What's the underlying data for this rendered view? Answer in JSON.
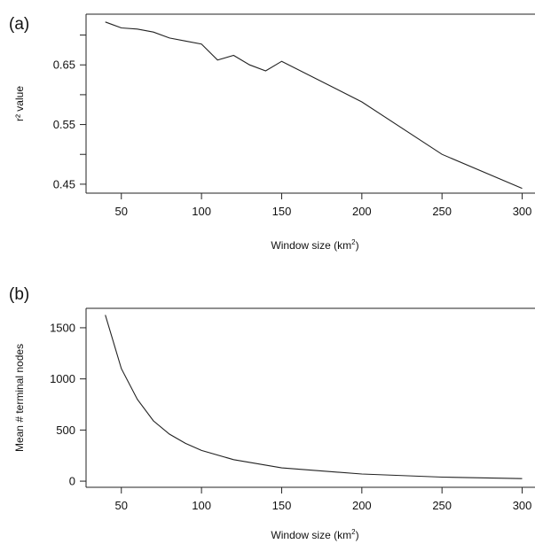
{
  "chart_data": [
    {
      "type": "line",
      "panel_label": "(a)",
      "xlabel": "Window size (km",
      "xlabel_sup": "2",
      "xlabel_end": ")",
      "ylabel": "r² value",
      "xticks": [
        50,
        100,
        150,
        200,
        250,
        300
      ],
      "xtick_labels": [
        "50",
        "100",
        "150",
        "200",
        "250",
        "300"
      ],
      "yticks": [
        0.45,
        0.5,
        0.55,
        0.6,
        0.65,
        0.7
      ],
      "ytick_labels": [
        "0.45",
        "",
        "0.55",
        "",
        "0.65",
        ""
      ],
      "xlim": [
        28,
        308
      ],
      "ylim": [
        0.435,
        0.735
      ],
      "series": [
        {
          "x": [
            40,
            50,
            60,
            70,
            80,
            90,
            100,
            110,
            120,
            130,
            140,
            150,
            200,
            250,
            300
          ],
          "y": [
            0.722,
            0.712,
            0.71,
            0.705,
            0.695,
            0.69,
            0.685,
            0.658,
            0.666,
            0.65,
            0.64,
            0.656,
            0.588,
            0.5,
            0.443
          ]
        }
      ],
      "grid": false
    },
    {
      "type": "line",
      "panel_label": "(b)",
      "xlabel": "Window size (km",
      "xlabel_sup": "2",
      "xlabel_end": ")",
      "ylabel": "Mean # terminal nodes",
      "xticks": [
        50,
        100,
        150,
        200,
        250,
        300
      ],
      "xtick_labels": [
        "50",
        "100",
        "150",
        "200",
        "250",
        "300"
      ],
      "yticks": [
        0,
        500,
        1000,
        1500
      ],
      "ytick_labels": [
        "0",
        "500",
        "1000",
        "1500"
      ],
      "xlim": [
        28,
        308
      ],
      "ylim": [
        -60,
        1690
      ],
      "series": [
        {
          "x": [
            40,
            50,
            60,
            70,
            80,
            90,
            100,
            120,
            150,
            200,
            250,
            300
          ],
          "y": [
            1625,
            1100,
            800,
            590,
            460,
            370,
            300,
            210,
            130,
            70,
            40,
            25
          ]
        }
      ],
      "grid": false
    }
  ]
}
